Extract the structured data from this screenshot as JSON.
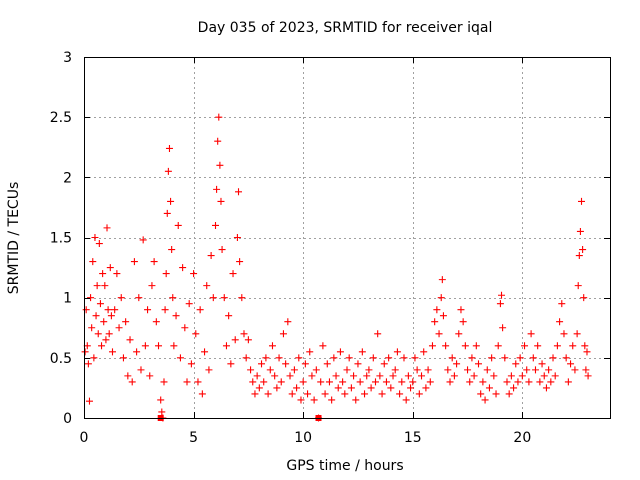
{
  "chart_data": {
    "type": "scatter",
    "title": "Day 035 of 2023, SRMTID for receiver iqal",
    "xlabel": "GPS time / hours",
    "ylabel": "SRMTID / TECUs",
    "xlim": [
      0,
      24
    ],
    "ylim": [
      0,
      3
    ],
    "x_ticks": [
      0,
      5,
      10,
      15,
      20
    ],
    "y_ticks": [
      0,
      0.5,
      1,
      1.5,
      2,
      2.5,
      3
    ],
    "x_tick_labels": [
      "0",
      "5",
      "10",
      "15",
      "20"
    ],
    "y_tick_labels": [
      "0",
      "0.5",
      "1",
      "1.5",
      "2",
      "2.5",
      "3"
    ],
    "grid": true,
    "marker": "+",
    "color": "#ff0000",
    "series": [
      {
        "name": "SRMTID",
        "points": [
          [
            0.05,
            0.55
          ],
          [
            0.1,
            0.9
          ],
          [
            0.15,
            0.6
          ],
          [
            0.2,
            0.45
          ],
          [
            0.25,
            0.14
          ],
          [
            0.3,
            1.0
          ],
          [
            0.35,
            0.75
          ],
          [
            0.4,
            1.3
          ],
          [
            0.45,
            0.5
          ],
          [
            0.5,
            1.5
          ],
          [
            0.55,
            0.85
          ],
          [
            0.6,
            1.1
          ],
          [
            0.65,
            0.7
          ],
          [
            0.7,
            1.45
          ],
          [
            0.75,
            0.95
          ],
          [
            0.8,
            0.6
          ],
          [
            0.85,
            1.2
          ],
          [
            0.9,
            0.8
          ],
          [
            0.95,
            1.1
          ],
          [
            1.0,
            0.65
          ],
          [
            1.05,
            1.58
          ],
          [
            1.1,
            0.9
          ],
          [
            1.15,
            0.7
          ],
          [
            1.2,
            1.25
          ],
          [
            1.25,
            0.85
          ],
          [
            1.3,
            0.55
          ],
          [
            1.4,
            0.9
          ],
          [
            1.5,
            1.2
          ],
          [
            1.6,
            0.75
          ],
          [
            1.7,
            1.0
          ],
          [
            1.8,
            0.5
          ],
          [
            1.9,
            0.8
          ],
          [
            2.0,
            0.35
          ],
          [
            2.1,
            0.65
          ],
          [
            2.2,
            0.3
          ],
          [
            2.3,
            1.3
          ],
          [
            2.4,
            0.55
          ],
          [
            2.5,
            1.0
          ],
          [
            2.6,
            0.4
          ],
          [
            2.7,
            1.48
          ],
          [
            2.8,
            0.6
          ],
          [
            2.9,
            0.9
          ],
          [
            3.0,
            0.35
          ],
          [
            3.1,
            1.1
          ],
          [
            3.2,
            1.3
          ],
          [
            3.3,
            0.8
          ],
          [
            3.4,
            0.6
          ],
          [
            3.5,
            0.15
          ],
          [
            3.55,
            0.05
          ],
          [
            3.6,
            0.0
          ],
          [
            3.65,
            0.3
          ],
          [
            3.7,
            0.9
          ],
          [
            3.75,
            1.2
          ],
          [
            3.8,
            1.7
          ],
          [
            3.85,
            2.05
          ],
          [
            3.9,
            2.24
          ],
          [
            3.95,
            1.8
          ],
          [
            4.0,
            1.4
          ],
          [
            4.05,
            1.0
          ],
          [
            4.1,
            0.6
          ],
          [
            4.2,
            0.85
          ],
          [
            4.3,
            1.6
          ],
          [
            4.4,
            0.5
          ],
          [
            4.5,
            1.25
          ],
          [
            4.6,
            0.75
          ],
          [
            4.7,
            0.3
          ],
          [
            4.8,
            0.95
          ],
          [
            4.9,
            0.45
          ],
          [
            5.0,
            1.2
          ],
          [
            5.1,
            0.7
          ],
          [
            5.2,
            0.3
          ],
          [
            5.3,
            0.9
          ],
          [
            5.4,
            0.2
          ],
          [
            5.5,
            0.55
          ],
          [
            5.6,
            1.1
          ],
          [
            5.7,
            0.4
          ],
          [
            5.8,
            1.35
          ],
          [
            5.9,
            1.0
          ],
          [
            6.0,
            1.6
          ],
          [
            6.05,
            1.9
          ],
          [
            6.1,
            2.3
          ],
          [
            6.15,
            2.5
          ],
          [
            6.2,
            2.1
          ],
          [
            6.25,
            1.8
          ],
          [
            6.3,
            1.4
          ],
          [
            6.4,
            1.0
          ],
          [
            6.5,
            0.6
          ],
          [
            6.6,
            0.85
          ],
          [
            6.7,
            0.45
          ],
          [
            6.8,
            1.2
          ],
          [
            6.9,
            0.65
          ],
          [
            7.0,
            1.5
          ],
          [
            7.05,
            1.88
          ],
          [
            7.1,
            1.3
          ],
          [
            7.2,
            1.0
          ],
          [
            7.3,
            0.7
          ],
          [
            7.4,
            0.5
          ],
          [
            7.5,
            0.65
          ],
          [
            7.6,
            0.4
          ],
          [
            7.7,
            0.3
          ],
          [
            7.8,
            0.2
          ],
          [
            7.9,
            0.35
          ],
          [
            8.0,
            0.25
          ],
          [
            8.1,
            0.45
          ],
          [
            8.2,
            0.3
          ],
          [
            8.3,
            0.5
          ],
          [
            8.4,
            0.2
          ],
          [
            8.5,
            0.4
          ],
          [
            8.6,
            0.6
          ],
          [
            8.7,
            0.35
          ],
          [
            8.8,
            0.25
          ],
          [
            8.9,
            0.5
          ],
          [
            9.0,
            0.3
          ],
          [
            9.1,
            0.7
          ],
          [
            9.2,
            0.45
          ],
          [
            9.3,
            0.8
          ],
          [
            9.4,
            0.35
          ],
          [
            9.5,
            0.2
          ],
          [
            9.6,
            0.4
          ],
          [
            9.7,
            0.25
          ],
          [
            9.8,
            0.5
          ],
          [
            9.9,
            0.15
          ],
          [
            10.0,
            0.3
          ],
          [
            10.1,
            0.45
          ],
          [
            10.2,
            0.2
          ],
          [
            10.3,
            0.55
          ],
          [
            10.4,
            0.35
          ],
          [
            10.5,
            0.15
          ],
          [
            10.6,
            0.4
          ],
          [
            10.7,
            0.0
          ],
          [
            10.8,
            0.3
          ],
          [
            10.9,
            0.6
          ],
          [
            11.0,
            0.2
          ],
          [
            11.1,
            0.45
          ],
          [
            11.2,
            0.3
          ],
          [
            11.3,
            0.15
          ],
          [
            11.4,
            0.5
          ],
          [
            11.5,
            0.35
          ],
          [
            11.6,
            0.25
          ],
          [
            11.7,
            0.55
          ],
          [
            11.8,
            0.3
          ],
          [
            11.9,
            0.2
          ],
          [
            12.0,
            0.4
          ],
          [
            12.1,
            0.5
          ],
          [
            12.2,
            0.25
          ],
          [
            12.3,
            0.35
          ],
          [
            12.4,
            0.15
          ],
          [
            12.5,
            0.45
          ],
          [
            12.6,
            0.3
          ],
          [
            12.7,
            0.55
          ],
          [
            12.8,
            0.2
          ],
          [
            12.9,
            0.35
          ],
          [
            13.0,
            0.4
          ],
          [
            13.1,
            0.25
          ],
          [
            13.2,
            0.5
          ],
          [
            13.3,
            0.3
          ],
          [
            13.4,
            0.7
          ],
          [
            13.5,
            0.35
          ],
          [
            13.6,
            0.2
          ],
          [
            13.7,
            0.45
          ],
          [
            13.8,
            0.3
          ],
          [
            13.9,
            0.5
          ],
          [
            14.0,
            0.25
          ],
          [
            14.1,
            0.35
          ],
          [
            14.2,
            0.4
          ],
          [
            14.3,
            0.55
          ],
          [
            14.4,
            0.2
          ],
          [
            14.5,
            0.3
          ],
          [
            14.6,
            0.5
          ],
          [
            14.7,
            0.15
          ],
          [
            14.8,
            0.35
          ],
          [
            14.9,
            0.25
          ],
          [
            15.0,
            0.3
          ],
          [
            15.1,
            0.5
          ],
          [
            15.2,
            0.4
          ],
          [
            15.3,
            0.2
          ],
          [
            15.4,
            0.35
          ],
          [
            15.5,
            0.55
          ],
          [
            15.6,
            0.25
          ],
          [
            15.7,
            0.4
          ],
          [
            15.8,
            0.3
          ],
          [
            15.9,
            0.6
          ],
          [
            16.0,
            0.8
          ],
          [
            16.1,
            0.9
          ],
          [
            16.2,
            0.7
          ],
          [
            16.3,
            1.0
          ],
          [
            16.35,
            1.15
          ],
          [
            16.4,
            0.85
          ],
          [
            16.5,
            0.6
          ],
          [
            16.6,
            0.4
          ],
          [
            16.7,
            0.3
          ],
          [
            16.8,
            0.5
          ],
          [
            16.9,
            0.35
          ],
          [
            17.0,
            0.45
          ],
          [
            17.1,
            0.7
          ],
          [
            17.2,
            0.9
          ],
          [
            17.3,
            0.8
          ],
          [
            17.4,
            0.6
          ],
          [
            17.5,
            0.4
          ],
          [
            17.6,
            0.3
          ],
          [
            17.7,
            0.5
          ],
          [
            17.8,
            0.35
          ],
          [
            17.9,
            0.6
          ],
          [
            18.0,
            0.45
          ],
          [
            18.1,
            0.2
          ],
          [
            18.2,
            0.3
          ],
          [
            18.3,
            0.15
          ],
          [
            18.4,
            0.4
          ],
          [
            18.5,
            0.25
          ],
          [
            18.6,
            0.5
          ],
          [
            18.7,
            0.35
          ],
          [
            18.8,
            0.2
          ],
          [
            18.9,
            0.6
          ],
          [
            19.0,
            0.95
          ],
          [
            19.05,
            1.02
          ],
          [
            19.1,
            0.75
          ],
          [
            19.2,
            0.5
          ],
          [
            19.3,
            0.3
          ],
          [
            19.4,
            0.2
          ],
          [
            19.5,
            0.35
          ],
          [
            19.6,
            0.25
          ],
          [
            19.7,
            0.45
          ],
          [
            19.8,
            0.3
          ],
          [
            19.9,
            0.5
          ],
          [
            20.0,
            0.35
          ],
          [
            20.1,
            0.6
          ],
          [
            20.2,
            0.4
          ],
          [
            20.3,
            0.3
          ],
          [
            20.4,
            0.7
          ],
          [
            20.5,
            0.5
          ],
          [
            20.6,
            0.4
          ],
          [
            20.7,
            0.6
          ],
          [
            20.8,
            0.3
          ],
          [
            20.9,
            0.45
          ],
          [
            21.0,
            0.35
          ],
          [
            21.1,
            0.25
          ],
          [
            21.2,
            0.4
          ],
          [
            21.3,
            0.3
          ],
          [
            21.4,
            0.5
          ],
          [
            21.5,
            0.35
          ],
          [
            21.6,
            0.6
          ],
          [
            21.7,
            0.8
          ],
          [
            21.8,
            0.95
          ],
          [
            21.9,
            0.7
          ],
          [
            22.0,
            0.5
          ],
          [
            22.1,
            0.3
          ],
          [
            22.2,
            0.45
          ],
          [
            22.3,
            0.6
          ],
          [
            22.4,
            0.4
          ],
          [
            22.5,
            0.7
          ],
          [
            22.55,
            1.1
          ],
          [
            22.6,
            1.35
          ],
          [
            22.65,
            1.55
          ],
          [
            22.7,
            1.8
          ],
          [
            22.75,
            1.4
          ],
          [
            22.8,
            1.0
          ],
          [
            22.85,
            0.6
          ],
          [
            22.9,
            0.4
          ],
          [
            22.95,
            0.55
          ],
          [
            23.0,
            0.35
          ]
        ]
      }
    ],
    "square_markers": [
      [
        3.5,
        0.0
      ],
      [
        10.7,
        0.0
      ]
    ]
  }
}
